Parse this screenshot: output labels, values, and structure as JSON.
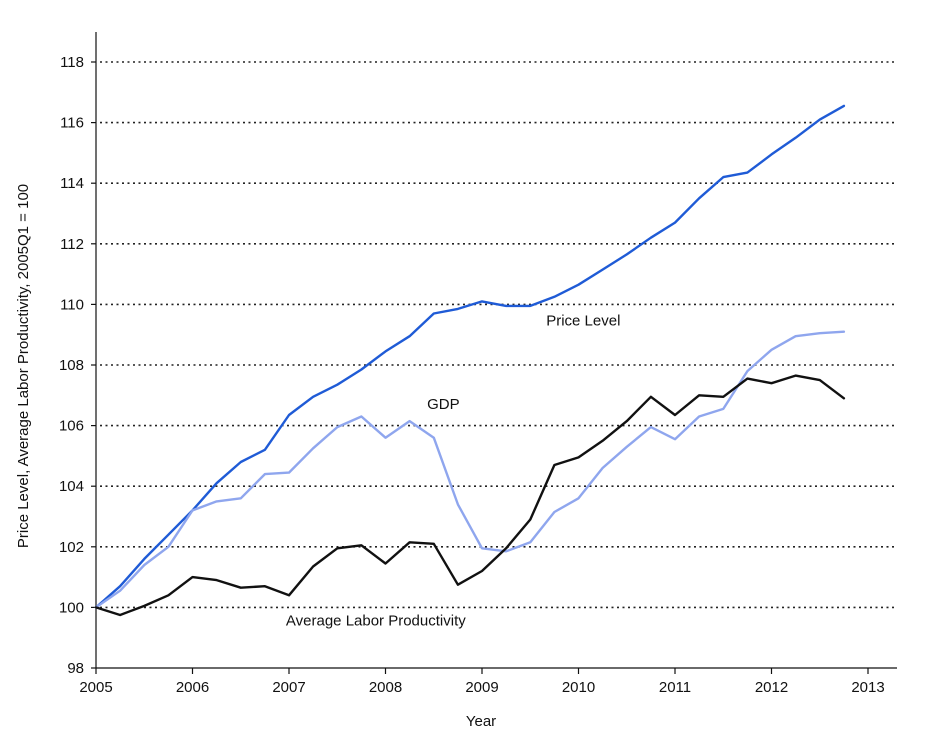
{
  "chart_data": {
    "type": "line",
    "title": "",
    "xlabel": "Year",
    "ylabel": "Price Level, Average Labor Productivity, 2005Q1 = 100",
    "xlim": [
      2005,
      2013
    ],
    "ylim": [
      98,
      119
    ],
    "x_ticks": [
      "2005",
      "2006",
      "2007",
      "2008",
      "2009",
      "2010",
      "2011",
      "2012",
      "2013"
    ],
    "y_ticks": [
      "98",
      "100",
      "102",
      "104",
      "106",
      "108",
      "110",
      "112",
      "114",
      "116",
      "118"
    ],
    "grid": "horizontal dotted",
    "x": [
      2005.0,
      2005.25,
      2005.5,
      2005.75,
      2006.0,
      2006.25,
      2006.5,
      2006.75,
      2007.0,
      2007.25,
      2007.5,
      2007.75,
      2008.0,
      2008.25,
      2008.5,
      2008.75,
      2009.0,
      2009.25,
      2009.5,
      2009.75,
      2010.0,
      2010.25,
      2010.5,
      2010.75,
      2011.0,
      2011.25,
      2011.5,
      2011.75,
      2012.0,
      2012.25,
      2012.5,
      2012.75
    ],
    "series": [
      {
        "name": "Price Level",
        "color": "#1f5bd6",
        "values": [
          100.0,
          100.7,
          101.6,
          102.4,
          103.2,
          104.1,
          104.8,
          105.2,
          106.35,
          106.95,
          107.35,
          107.85,
          108.45,
          108.95,
          109.7,
          109.85,
          110.1,
          109.95,
          109.95,
          110.25,
          110.65,
          111.15,
          111.65,
          112.2,
          112.7,
          113.5,
          114.2,
          114.35,
          114.95,
          115.5,
          116.1,
          116.55
        ]
      },
      {
        "name": "GDP",
        "color": "#8fa6ee",
        "values": [
          100.0,
          100.55,
          101.4,
          102.0,
          103.2,
          103.5,
          103.6,
          104.4,
          104.45,
          105.25,
          105.95,
          106.3,
          105.6,
          106.15,
          105.6,
          103.4,
          101.95,
          101.85,
          102.15,
          103.15,
          103.6,
          104.6,
          105.3,
          105.95,
          105.55,
          106.3,
          106.55,
          107.8,
          108.5,
          108.95,
          109.05,
          109.1
        ]
      },
      {
        "name": "Average Labor Productivity",
        "color": "#111111",
        "values": [
          100.0,
          99.75,
          100.05,
          100.4,
          101.0,
          100.9,
          100.65,
          100.7,
          100.4,
          101.35,
          101.95,
          102.05,
          101.45,
          102.15,
          102.1,
          100.75,
          101.2,
          101.95,
          102.9,
          104.7,
          104.95,
          105.5,
          106.15,
          106.95,
          106.35,
          107.0,
          106.95,
          107.55,
          107.4,
          107.65,
          107.5,
          106.9
        ]
      }
    ],
    "annotations": [
      {
        "text": "Price Level",
        "series": "Price Level",
        "at_x": 2010.05,
        "at_y": 109.3
      },
      {
        "text": "GDP",
        "series": "GDP",
        "at_x": 2008.6,
        "at_y": 106.55
      },
      {
        "text": "Average Labor Productivity",
        "series": "Average Labor Productivity",
        "at_x": 2007.9,
        "at_y": 99.4
      }
    ]
  }
}
